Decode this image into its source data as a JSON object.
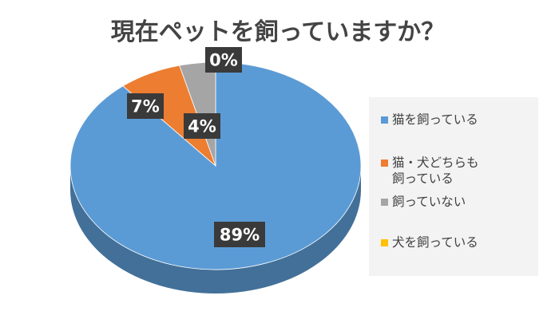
{
  "chart_data": {
    "type": "pie",
    "style": "3d",
    "title": "現在ペットを飼っていますか？",
    "legend_position": "right",
    "series": [
      {
        "name": "猫を飼っている",
        "value": 89,
        "label": "89%",
        "color": "#5b9bd5"
      },
      {
        "name": "猫・犬どちらも飼っている",
        "lines": [
          "猫・犬どちらも",
          "飼っている"
        ],
        "value": 7,
        "label": "7%",
        "color": "#ed7d31"
      },
      {
        "name": "飼っていない",
        "value": 4,
        "label": "4%",
        "color": "#a5a5a5"
      },
      {
        "name": "犬を飼っている",
        "value": 0,
        "label": "0%",
        "color": "#ffc000"
      }
    ]
  }
}
